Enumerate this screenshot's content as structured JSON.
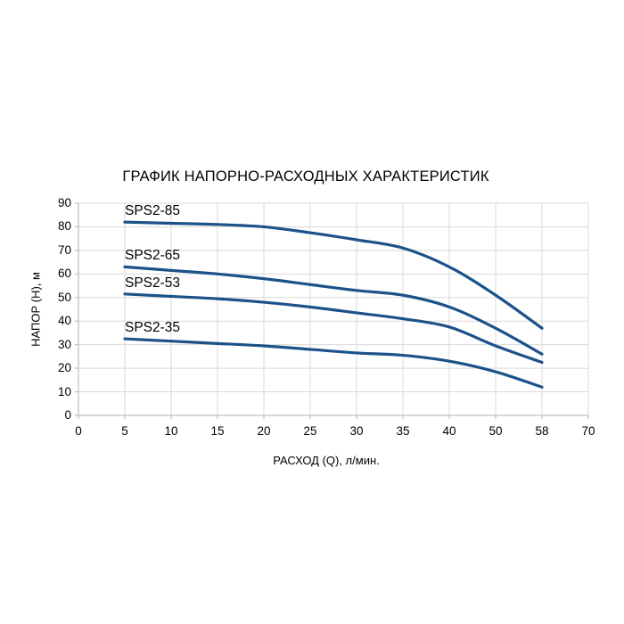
{
  "chart_data": {
    "type": "line",
    "title": "ГРАФИК НАПОРНО-РАСХОДНЫХ ХАРАКТЕРИСТИК",
    "xlabel": "РАСХОД (Q), л/мин.",
    "ylabel": "НАПОР (H), м",
    "x_tick_labels": [
      "0",
      "5",
      "10",
      "15",
      "20",
      "25",
      "30",
      "35",
      "40",
      "50",
      "58",
      "70"
    ],
    "x_axis_type": "category (ticks evenly spaced despite unequal values)",
    "y_ticks": [
      0,
      10,
      20,
      30,
      40,
      50,
      60,
      70,
      80,
      90
    ],
    "ylim": [
      0,
      90
    ],
    "grid": true,
    "legend_position": "inline labels above left end of each curve",
    "q_values": [
      5,
      10,
      15,
      20,
      25,
      30,
      35,
      40,
      50,
      58
    ],
    "series": [
      {
        "name": "SPS2-85",
        "values": [
          82,
          81.5,
          81,
          80,
          77.5,
          74.5,
          71,
          63,
          51,
          37
        ]
      },
      {
        "name": "SPS2-65",
        "values": [
          63,
          61.5,
          60,
          58,
          55.5,
          53,
          51,
          46,
          37,
          26
        ]
      },
      {
        "name": "SPS2-53",
        "values": [
          51.5,
          50.5,
          49.5,
          48,
          46,
          43.5,
          41,
          37.5,
          29.5,
          22.5
        ]
      },
      {
        "name": "SPS2-35",
        "values": [
          32.5,
          31.5,
          30.5,
          29.5,
          28,
          26.5,
          25.5,
          23,
          18.5,
          12
        ]
      }
    ],
    "line_color": "#1c5289",
    "gridline_color": "#d9d9d9",
    "axis_color": "#bfbfbf",
    "text_color": "#000000"
  }
}
